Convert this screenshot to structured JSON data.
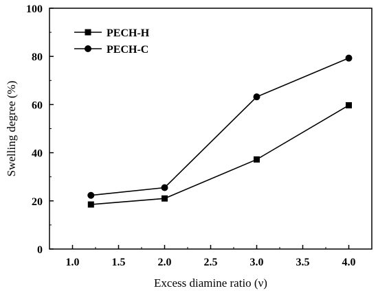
{
  "chart_data": {
    "type": "line",
    "xlabel": "Excess diamine ratio (ν)",
    "ylabel": "Swelling degree (%)",
    "xlim": [
      0.75,
      4.25
    ],
    "ylim": [
      0,
      100
    ],
    "xticks": [
      1.0,
      1.5,
      2.0,
      2.5,
      3.0,
      3.5,
      4.0
    ],
    "xtick_labels": [
      "1.0",
      "1.5",
      "2.0",
      "2.5",
      "3.0",
      "3.5",
      "4.0"
    ],
    "yticks": [
      0,
      20,
      40,
      60,
      80,
      100
    ],
    "ytick_labels": [
      "0",
      "20",
      "40",
      "60",
      "80",
      "100"
    ],
    "grid": false,
    "legend_position": "top-left",
    "series": [
      {
        "name": "PECH-H",
        "marker": "square",
        "color": "#000000",
        "x": [
          1.2,
          2.0,
          3.0,
          4.0
        ],
        "y": [
          18.5,
          21,
          37.2,
          59.7
        ]
      },
      {
        "name": "PECH-C",
        "marker": "circle",
        "color": "#000000",
        "x": [
          1.2,
          2.0,
          3.0,
          4.0
        ],
        "y": [
          22.3,
          25.5,
          63.2,
          79.3
        ]
      }
    ]
  }
}
